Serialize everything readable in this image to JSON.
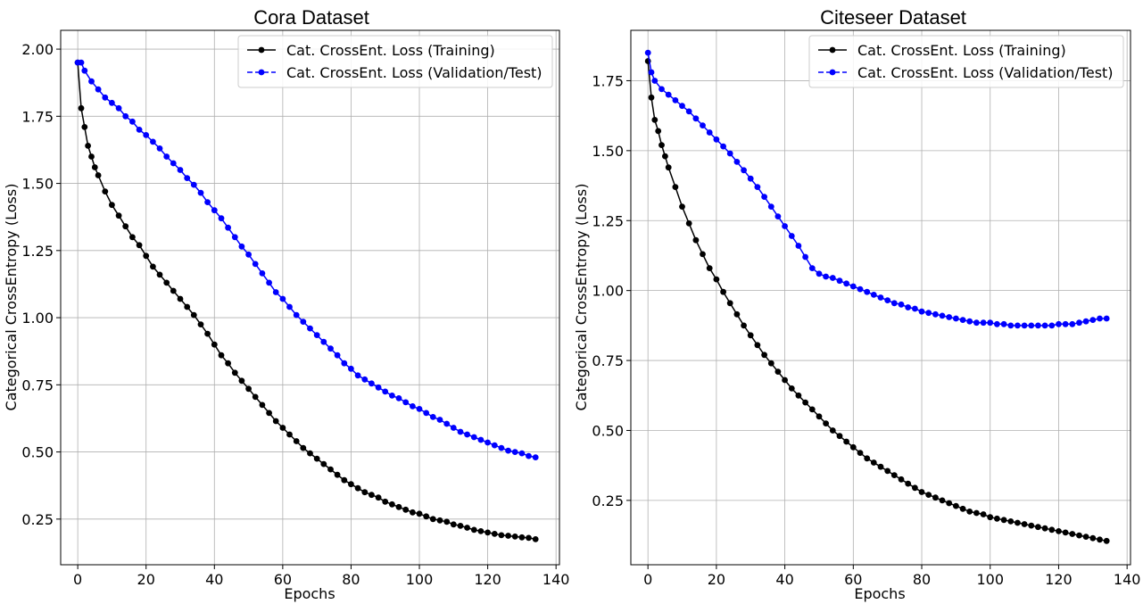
{
  "chart_data": [
    {
      "type": "line",
      "title": "Cora Dataset",
      "xlabel": "Epochs",
      "ylabel": "Categorical CrossEntropy (Loss)",
      "xlim": [
        -5,
        141
      ],
      "ylim": [
        0.08,
        2.07
      ],
      "xticks": [
        0,
        20,
        40,
        60,
        80,
        100,
        120,
        140
      ],
      "yticks": [
        0.25,
        0.5,
        0.75,
        1.0,
        1.25,
        1.5,
        1.75,
        2.0
      ],
      "xtick_labels": [
        "0",
        "20",
        "40",
        "60",
        "80",
        "100",
        "120",
        "140"
      ],
      "ytick_labels": [
        "0.25",
        "0.50",
        "0.75",
        "1.00",
        "1.25",
        "1.50",
        "1.75",
        "2.00"
      ],
      "grid": true,
      "legend_position": "top-right",
      "series": [
        {
          "name": "Cat. CrossEnt. Loss (Training)",
          "color": "#000000",
          "line_style": "solid",
          "marker": "circle",
          "x": [
            0,
            1,
            2,
            3,
            4,
            5,
            6,
            8,
            10,
            12,
            14,
            16,
            18,
            20,
            22,
            24,
            26,
            28,
            30,
            32,
            34,
            36,
            38,
            40,
            42,
            44,
            46,
            48,
            50,
            52,
            54,
            56,
            58,
            60,
            62,
            64,
            66,
            68,
            70,
            72,
            74,
            76,
            78,
            80,
            82,
            84,
            86,
            88,
            90,
            92,
            94,
            96,
            98,
            100,
            102,
            104,
            106,
            108,
            110,
            112,
            114,
            116,
            118,
            120,
            122,
            124,
            126,
            128,
            130,
            132,
            134
          ],
          "values": [
            1.95,
            1.78,
            1.71,
            1.64,
            1.6,
            1.56,
            1.53,
            1.47,
            1.42,
            1.38,
            1.34,
            1.3,
            1.27,
            1.23,
            1.19,
            1.16,
            1.13,
            1.1,
            1.07,
            1.04,
            1.01,
            0.975,
            0.94,
            0.9,
            0.86,
            0.83,
            0.795,
            0.765,
            0.735,
            0.705,
            0.675,
            0.645,
            0.615,
            0.59,
            0.565,
            0.54,
            0.515,
            0.495,
            0.475,
            0.455,
            0.435,
            0.415,
            0.395,
            0.38,
            0.365,
            0.35,
            0.34,
            0.33,
            0.315,
            0.305,
            0.295,
            0.285,
            0.275,
            0.27,
            0.26,
            0.25,
            0.245,
            0.24,
            0.23,
            0.225,
            0.218,
            0.21,
            0.205,
            0.2,
            0.195,
            0.19,
            0.188,
            0.185,
            0.182,
            0.18,
            0.175
          ]
        },
        {
          "name": "Cat. CrossEnt. Loss (Validation/Test)",
          "color": "#0000ff",
          "line_style": "dashed",
          "marker": "circle",
          "x": [
            0,
            1,
            2,
            4,
            6,
            8,
            10,
            12,
            14,
            16,
            18,
            20,
            22,
            24,
            26,
            28,
            30,
            32,
            34,
            36,
            38,
            40,
            42,
            44,
            46,
            48,
            50,
            52,
            54,
            56,
            58,
            60,
            62,
            64,
            66,
            68,
            70,
            72,
            74,
            76,
            78,
            80,
            82,
            84,
            86,
            88,
            90,
            92,
            94,
            96,
            98,
            100,
            102,
            104,
            106,
            108,
            110,
            112,
            114,
            116,
            118,
            120,
            122,
            124,
            126,
            128,
            130,
            132,
            134
          ],
          "values": [
            1.95,
            1.95,
            1.92,
            1.88,
            1.85,
            1.82,
            1.8,
            1.78,
            1.75,
            1.73,
            1.7,
            1.68,
            1.655,
            1.63,
            1.6,
            1.575,
            1.55,
            1.52,
            1.495,
            1.465,
            1.43,
            1.4,
            1.37,
            1.335,
            1.3,
            1.265,
            1.235,
            1.2,
            1.165,
            1.13,
            1.095,
            1.07,
            1.04,
            1.01,
            0.985,
            0.96,
            0.935,
            0.91,
            0.885,
            0.86,
            0.83,
            0.81,
            0.785,
            0.77,
            0.755,
            0.74,
            0.725,
            0.71,
            0.7,
            0.685,
            0.67,
            0.66,
            0.645,
            0.63,
            0.62,
            0.605,
            0.59,
            0.575,
            0.565,
            0.555,
            0.545,
            0.535,
            0.525,
            0.515,
            0.505,
            0.5,
            0.495,
            0.485,
            0.48
          ]
        }
      ]
    },
    {
      "type": "line",
      "title": "Citeseer Dataset",
      "xlabel": "Epochs",
      "ylabel": "Categorical CrossEntropy (Loss)",
      "xlim": [
        -5,
        141
      ],
      "ylim": [
        0.02,
        1.93
      ],
      "xticks": [
        0,
        20,
        40,
        60,
        80,
        100,
        120,
        140
      ],
      "yticks": [
        0.25,
        0.5,
        0.75,
        1.0,
        1.25,
        1.5,
        1.75
      ],
      "xtick_labels": [
        "0",
        "20",
        "40",
        "60",
        "80",
        "100",
        "120",
        "140"
      ],
      "ytick_labels": [
        "0.25",
        "0.50",
        "0.75",
        "1.00",
        "1.25",
        "1.50",
        "1.75"
      ],
      "grid": true,
      "legend_position": "top-right",
      "series": [
        {
          "name": "Cat. CrossEnt. Loss (Training)",
          "color": "#000000",
          "line_style": "solid",
          "marker": "circle",
          "x": [
            0,
            1,
            2,
            3,
            4,
            5,
            6,
            8,
            10,
            12,
            14,
            16,
            18,
            20,
            22,
            24,
            26,
            28,
            30,
            32,
            34,
            36,
            38,
            40,
            42,
            44,
            46,
            48,
            50,
            52,
            54,
            56,
            58,
            60,
            62,
            64,
            66,
            68,
            70,
            72,
            74,
            76,
            78,
            80,
            82,
            84,
            86,
            88,
            90,
            92,
            94,
            96,
            98,
            100,
            102,
            104,
            106,
            108,
            110,
            112,
            114,
            116,
            118,
            120,
            122,
            124,
            126,
            128,
            130,
            132,
            134
          ],
          "values": [
            1.82,
            1.69,
            1.61,
            1.57,
            1.52,
            1.48,
            1.44,
            1.37,
            1.3,
            1.24,
            1.18,
            1.13,
            1.08,
            1.04,
            0.995,
            0.955,
            0.915,
            0.875,
            0.84,
            0.805,
            0.77,
            0.74,
            0.71,
            0.68,
            0.65,
            0.625,
            0.6,
            0.575,
            0.55,
            0.525,
            0.5,
            0.48,
            0.46,
            0.44,
            0.42,
            0.4,
            0.385,
            0.37,
            0.355,
            0.34,
            0.325,
            0.31,
            0.295,
            0.28,
            0.27,
            0.26,
            0.25,
            0.24,
            0.23,
            0.22,
            0.21,
            0.205,
            0.2,
            0.19,
            0.185,
            0.18,
            0.175,
            0.17,
            0.165,
            0.16,
            0.155,
            0.15,
            0.145,
            0.14,
            0.135,
            0.13,
            0.125,
            0.12,
            0.115,
            0.11,
            0.105
          ]
        },
        {
          "name": "Cat. CrossEnt. Loss (Validation/Test)",
          "color": "#0000ff",
          "line_style": "dashed",
          "marker": "circle",
          "x": [
            0,
            1,
            2,
            4,
            6,
            8,
            10,
            12,
            14,
            16,
            18,
            20,
            22,
            24,
            26,
            28,
            30,
            32,
            34,
            36,
            38,
            40,
            42,
            44,
            46,
            48,
            50,
            52,
            54,
            56,
            58,
            60,
            62,
            64,
            66,
            68,
            70,
            72,
            74,
            76,
            78,
            80,
            82,
            84,
            86,
            88,
            90,
            92,
            94,
            96,
            98,
            100,
            102,
            104,
            106,
            108,
            110,
            112,
            114,
            116,
            118,
            120,
            122,
            124,
            126,
            128,
            130,
            132,
            134
          ],
          "values": [
            1.85,
            1.78,
            1.75,
            1.72,
            1.7,
            1.68,
            1.66,
            1.64,
            1.615,
            1.59,
            1.565,
            1.54,
            1.515,
            1.49,
            1.46,
            1.43,
            1.4,
            1.37,
            1.335,
            1.3,
            1.265,
            1.23,
            1.195,
            1.16,
            1.12,
            1.08,
            1.06,
            1.05,
            1.045,
            1.035,
            1.025,
            1.015,
            1.005,
            0.995,
            0.985,
            0.975,
            0.965,
            0.955,
            0.95,
            0.94,
            0.935,
            0.925,
            0.92,
            0.915,
            0.91,
            0.905,
            0.9,
            0.895,
            0.89,
            0.885,
            0.885,
            0.885,
            0.88,
            0.88,
            0.875,
            0.875,
            0.875,
            0.875,
            0.875,
            0.875,
            0.875,
            0.88,
            0.88,
            0.88,
            0.885,
            0.89,
            0.895,
            0.9,
            0.9
          ]
        }
      ]
    }
  ]
}
